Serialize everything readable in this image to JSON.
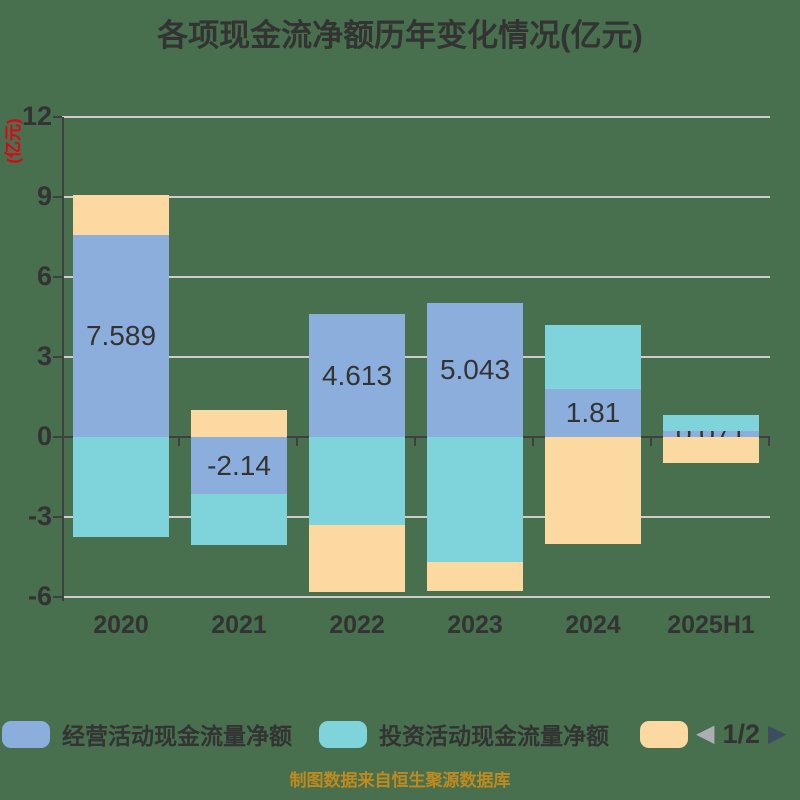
{
  "title": "各项现金流净额历年变化情况(亿元)",
  "y_axis": {
    "name": "(亿元)",
    "ticks": [
      12,
      9,
      6,
      3,
      0,
      -3,
      -6
    ]
  },
  "legend": {
    "items": [
      {
        "label": "经营活动现金流量净额",
        "color": "#8caedc"
      },
      {
        "label": "投资活动现金流量净额",
        "color": "#7fd3db"
      },
      {
        "label": "",
        "color": "#fbd9a0"
      }
    ],
    "pagination": {
      "page": "1/2"
    }
  },
  "footer": {
    "text": "制图数据来自恒生聚源数据库"
  },
  "chart_data": {
    "type": "bar",
    "stacked": true,
    "categories": [
      "2020",
      "2021",
      "2022",
      "2023",
      "2024",
      "2025H1"
    ],
    "series": [
      {
        "name": "经营活动现金流量净额",
        "color": "#8caedc",
        "values": [
          7.589,
          -2.14,
          4.613,
          5.043,
          1.81,
          0.071
        ],
        "data_labels": [
          "7.589",
          "-2.14",
          "4.613",
          "5.043",
          "1.81",
          "0.071"
        ]
      },
      {
        "name": "投资活动现金流量净额",
        "color": "#7fd3db",
        "values": [
          -3.75,
          -1.9,
          -3.3,
          -4.7,
          2.4,
          0.6
        ]
      },
      {
        "name": "",
        "color": "#fbd9a0",
        "values": [
          1.5,
          1.0,
          -2.5,
          -1.1,
          -4.0,
          -0.97
        ]
      }
    ],
    "ylim": [
      -6,
      12
    ],
    "ylabel": "(亿元)",
    "grid": true,
    "legend_position": "bottom",
    "title": "各项现金流净额历年变化情况(亿元)"
  },
  "colors": {
    "background": "#48704e",
    "text": "#333333",
    "axis": "#3f3f3f",
    "gridline": "#cdcdcd",
    "y_axis_name": "#e60012",
    "footer_text": "#bf8a1e",
    "pager_prev": "#abafb4",
    "pager_next": "#3d4d60"
  }
}
